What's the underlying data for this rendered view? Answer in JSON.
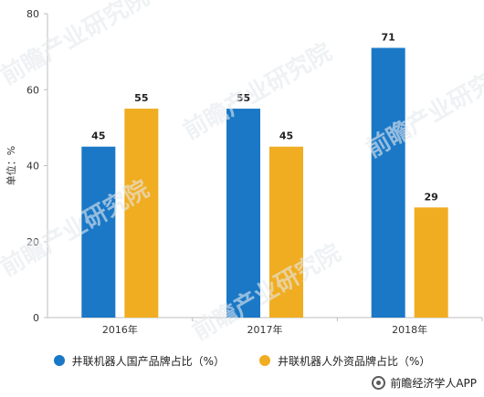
{
  "chart_data": {
    "type": "bar",
    "categories": [
      "2016年",
      "2017年",
      "2018年"
    ],
    "series": [
      {
        "name": "井联机器人国产品牌占比（%）",
        "color": "#1a78c6",
        "values": [
          45,
          55,
          71
        ]
      },
      {
        "name": "井联机器人外资品牌占比（%）",
        "color": "#f0ad22",
        "values": [
          55,
          45,
          29
        ]
      }
    ],
    "ylabel": "单位：%",
    "ylim": [
      0,
      80
    ],
    "yticks": [
      "0",
      "20",
      "40",
      "60",
      "80"
    ],
    "grid": false,
    "legend": "bottom"
  },
  "source": "前瞻经济学人APP",
  "watermark": "前瞻产业研究院"
}
